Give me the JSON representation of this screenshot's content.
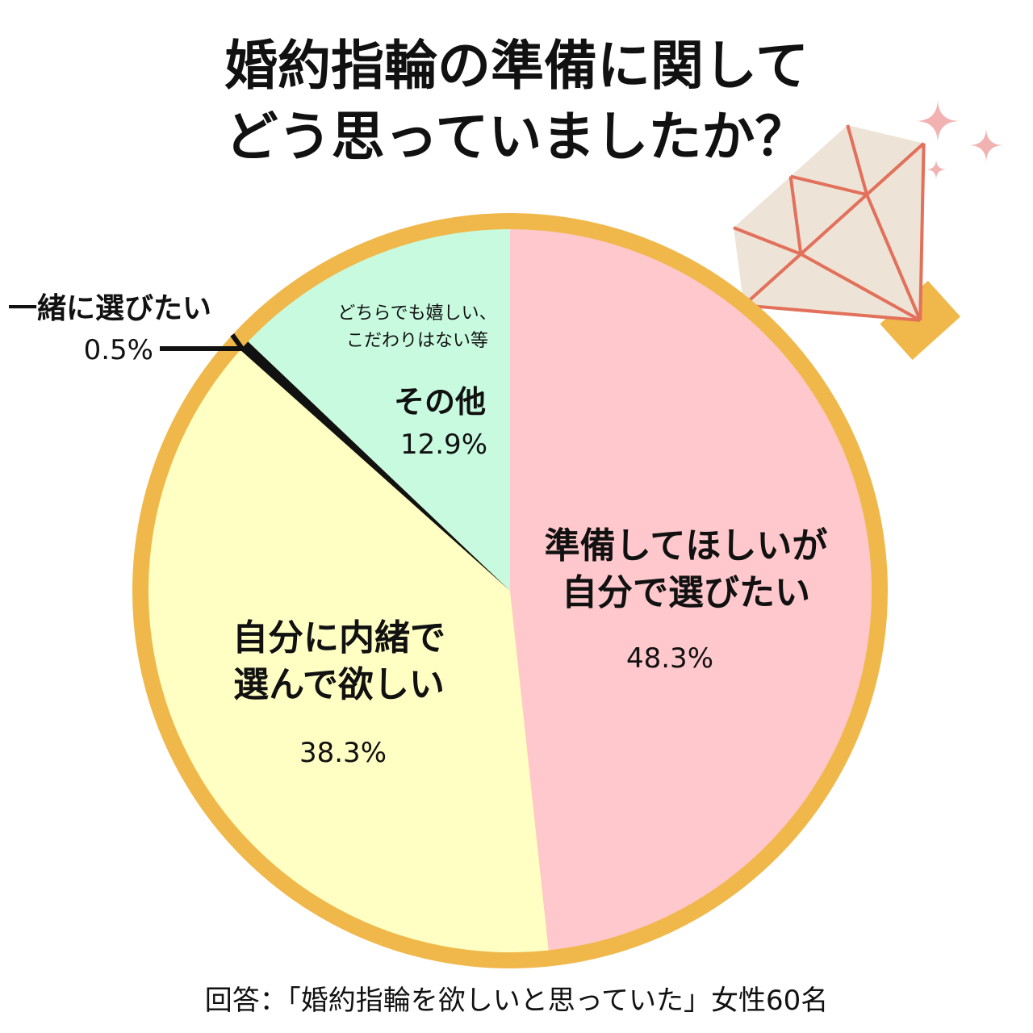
{
  "title": {
    "line1": "婚約指輪の準備に関して",
    "line2": "どう思っていましたか？"
  },
  "chart_data": {
    "type": "pie",
    "start": "12 o'clock",
    "direction": "clockwise",
    "slices": [
      {
        "label_lines": [
          "準備してほしいが",
          "自分で選びたい"
        ],
        "value": 48.3,
        "value_text": "48.3%",
        "color": "#ffc8cc"
      },
      {
        "label_lines": [
          "自分に内緒で",
          "選んで欲しい"
        ],
        "value": 38.3,
        "value_text": "38.3%",
        "color": "#ffffc4"
      },
      {
        "label_lines": [
          "一緒に選びたい"
        ],
        "value": 0.5,
        "value_text": "0.5%",
        "color": "#111111"
      },
      {
        "label_lines": [
          "その他"
        ],
        "note_lines": [
          "どちらでも嬉しい、",
          "こだわりはない等"
        ],
        "value": 12.9,
        "value_text": "12.9%",
        "color": "#c8fae0"
      }
    ],
    "ring_color": "#f0b84a",
    "gem_color": "#ede3d6",
    "gem_line_color": "#e2705a",
    "sparkle_color": "#f2b2b2"
  },
  "footer": "回答：「婚約指輪を欲しいと思っていた」女性60名"
}
